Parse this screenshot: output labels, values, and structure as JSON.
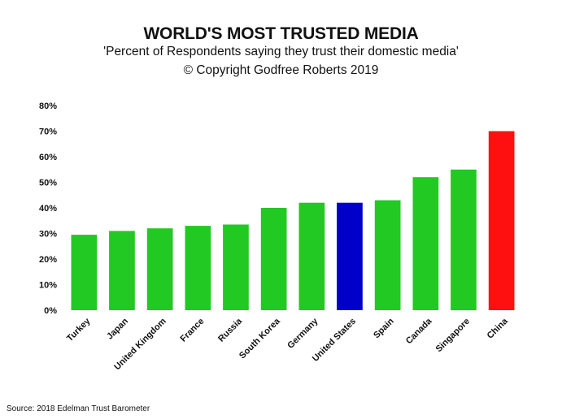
{
  "chart_data": {
    "type": "bar",
    "title": "WORLD'S MOST TRUSTED MEDIA",
    "subtitle": "'Percent of Respondents saying they trust their domestic media'",
    "copyright": "© Copyright Godfree Roberts 2019",
    "source": "Source: 2018 Edelman Trust Barometer",
    "categories": [
      "Turkey",
      "Japan",
      "United Kingdom",
      "France",
      "Russia",
      "South Korea",
      "Germany",
      "United States",
      "Spain",
      "Canada",
      "Singapore",
      "China"
    ],
    "values": [
      29.5,
      31,
      32,
      33,
      33.5,
      40,
      42,
      42,
      43,
      52,
      55,
      70
    ],
    "bar_colors": [
      "#22c922",
      "#22c922",
      "#22c922",
      "#22c922",
      "#22c922",
      "#22c922",
      "#22c922",
      "#0000c8",
      "#22c922",
      "#22c922",
      "#22c922",
      "#ff1010"
    ],
    "yticks": [
      "0%",
      "10%",
      "20%",
      "30%",
      "40%",
      "50%",
      "60%",
      "70%",
      "80%"
    ],
    "ytick_values": [
      0,
      10,
      20,
      30,
      40,
      50,
      60,
      70,
      80
    ],
    "ylim": [
      0,
      80
    ],
    "xlabel": "",
    "ylabel": "",
    "grid": false
  }
}
